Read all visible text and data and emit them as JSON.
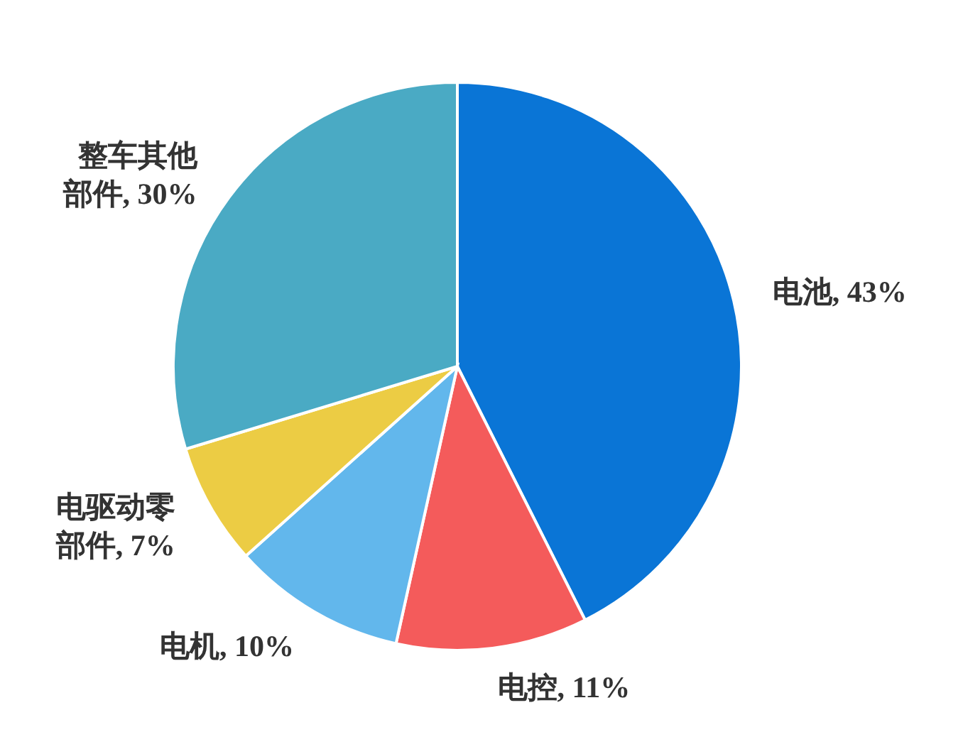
{
  "chart_data": {
    "type": "pie",
    "categories": [
      "电池",
      "电控",
      "电机",
      "电驱动零部件",
      "整车其他部件"
    ],
    "values": [
      43,
      11,
      10,
      7,
      30
    ],
    "value_labels": [
      "43%",
      "11%",
      "10%",
      "7%",
      "30%"
    ],
    "colors": [
      "#0a75d6",
      "#f45b5b",
      "#62b7ec",
      "#eccc44",
      "#4aaac4"
    ],
    "legend": false
  }
}
